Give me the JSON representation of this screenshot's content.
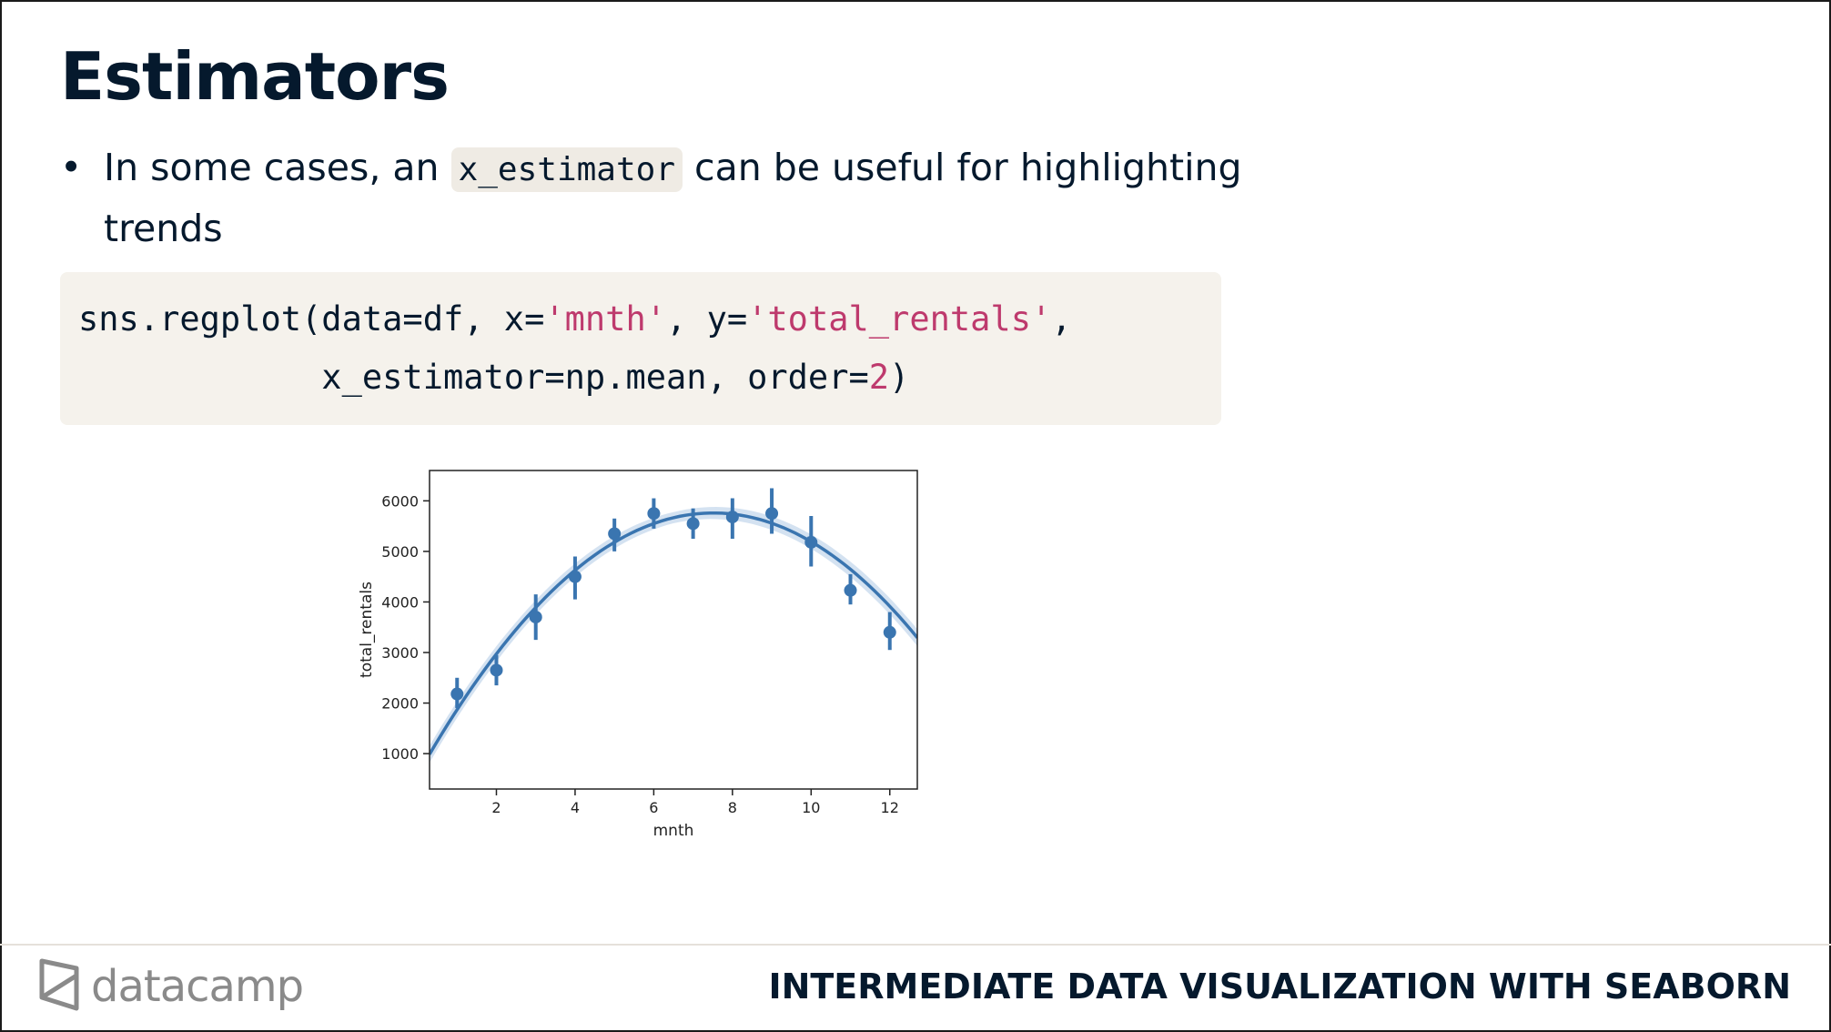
{
  "slide": {
    "title": "Estimators",
    "bullet": {
      "prefix": "In some cases, an ",
      "code": "x_estimator",
      "suffix": " can be useful for highlighting trends"
    },
    "code": {
      "line1": [
        {
          "t": "sns.regplot(data=df, x=",
          "c": "plain"
        },
        {
          "t": "'mnth'",
          "c": "str"
        },
        {
          "t": ", y=",
          "c": "plain"
        },
        {
          "t": "'total_rentals'",
          "c": "str"
        },
        {
          "t": ",",
          "c": "plain"
        }
      ],
      "line2": [
        {
          "t": "            x_estimator=np.mean, order=",
          "c": "plain"
        },
        {
          "t": "2",
          "c": "num"
        },
        {
          "t": ")",
          "c": "plain"
        }
      ]
    }
  },
  "footer": {
    "logo_text": "datacamp",
    "course_title": "INTERMEDIATE DATA VISUALIZATION WITH SEABORN"
  },
  "chart_data": {
    "type": "scatter",
    "xlabel": "mnth",
    "ylabel": "total_rentals",
    "xlim": [
      0.3,
      12.7
    ],
    "ylim": [
      300,
      6600
    ],
    "xticks": [
      2,
      4,
      6,
      8,
      10,
      12
    ],
    "yticks": [
      1000,
      2000,
      3000,
      4000,
      5000,
      6000
    ],
    "points": [
      {
        "x": 1,
        "y": 2180,
        "lo": 1900,
        "hi": 2500
      },
      {
        "x": 2,
        "y": 2650,
        "lo": 2350,
        "hi": 2950
      },
      {
        "x": 3,
        "y": 3700,
        "lo": 3250,
        "hi": 4150
      },
      {
        "x": 4,
        "y": 4500,
        "lo": 4050,
        "hi": 4900
      },
      {
        "x": 5,
        "y": 5350,
        "lo": 5000,
        "hi": 5650
      },
      {
        "x": 6,
        "y": 5750,
        "lo": 5450,
        "hi": 6050
      },
      {
        "x": 7,
        "y": 5550,
        "lo": 5250,
        "hi": 5850
      },
      {
        "x": 8,
        "y": 5680,
        "lo": 5250,
        "hi": 6050
      },
      {
        "x": 9,
        "y": 5750,
        "lo": 5350,
        "hi": 6250
      },
      {
        "x": 10,
        "y": 5180,
        "lo": 4700,
        "hi": 5700
      },
      {
        "x": 11,
        "y": 4230,
        "lo": 3950,
        "hi": 4550
      },
      {
        "x": 12,
        "y": 3400,
        "lo": 3050,
        "hi": 3800
      }
    ],
    "fit": {
      "order": 2,
      "coef": [
        -91.7,
        1378.0,
        583.0
      ]
    },
    "color": "#3a75b0",
    "band_color": "#c9dbee"
  }
}
